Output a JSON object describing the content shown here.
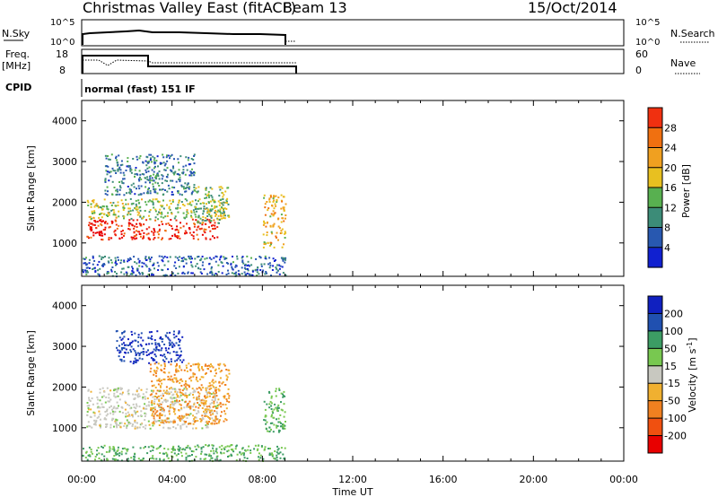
{
  "header": {
    "title": "Christmas Valley East (fitACF)",
    "beam": "Beam 13",
    "date": "15/Oct/2014"
  },
  "colors": {
    "axis": "#000000",
    "power_scale": [
      "#1020d0",
      "#2858b0",
      "#3c8c78",
      "#58b050",
      "#e8c020",
      "#f0a020",
      "#f07010",
      "#f03010",
      "#e80000"
    ],
    "velocity_scale": [
      "#e80000",
      "#f05010",
      "#f08020",
      "#f0b030",
      "#c8c8c0",
      "#78c850",
      "#3c9c64",
      "#2050b0",
      "#1020c0"
    ]
  },
  "sky_panel": {
    "left_label": "N.Sky",
    "left_ticks": [
      "10^5",
      "10^0"
    ],
    "right_ticks": [
      "10^5",
      "10^0"
    ],
    "right_label": "N.Search"
  },
  "freq_panel": {
    "left_label_1": "Freq.",
    "left_label_2": "[MHz]",
    "left_ticks": [
      "18",
      "8"
    ],
    "right_ticks": [
      "60",
      "0"
    ],
    "right_label": "Nave"
  },
  "cpid_panel": {
    "label": "CPID",
    "text": "normal (fast) 151 IF"
  },
  "chart_data": [
    {
      "type": "heatmap",
      "parameter": "Power",
      "ylabel": "Slant Range [km]",
      "xlabel": "Time UT",
      "x_ticks": [
        "00:00",
        "04:00",
        "08:00",
        "12:00",
        "16:00",
        "20:00",
        "00:00"
      ],
      "xlim_hours": [
        0,
        24
      ],
      "y_ticks": [
        1000,
        2000,
        3000,
        4000
      ],
      "ylim_km": [
        180,
        4500
      ],
      "colorbar": {
        "label": "Power [dB]",
        "ticks": [
          4,
          8,
          12,
          16,
          20,
          24,
          28
        ],
        "range": [
          0,
          32
        ]
      },
      "data_coverage_hours": [
        0,
        9.5
      ],
      "regions": [
        {
          "name": "main-echo-band",
          "t_start": 0.2,
          "t_end": 6.0,
          "range_km": [
            1100,
            1600
          ],
          "power_db": 28
        },
        {
          "name": "upper-band",
          "t_start": 0.2,
          "t_end": 6.5,
          "range_km": [
            1600,
            2100
          ],
          "power_db": 14
        },
        {
          "name": "high-range-patch",
          "t_start": 1.0,
          "t_end": 5.0,
          "range_km": [
            2200,
            3200
          ],
          "power_db": 8
        },
        {
          "name": "rising-arc",
          "t_start": 5.0,
          "t_end": 6.5,
          "range_km": [
            1500,
            2400
          ],
          "power_db": 12
        },
        {
          "name": "late-patch",
          "t_start": 8.0,
          "t_end": 9.0,
          "range_km": [
            900,
            2200
          ],
          "power_db": 18
        },
        {
          "name": "near-range-ground",
          "t_start": 0.0,
          "t_end": 9.0,
          "range_km": [
            200,
            700
          ],
          "power_db": 6
        }
      ]
    },
    {
      "type": "heatmap",
      "parameter": "Velocity",
      "ylabel": "Slant Range [km]",
      "xlabel": "Time UT",
      "x_ticks": [
        "00:00",
        "04:00",
        "08:00",
        "12:00",
        "16:00",
        "20:00",
        "00:00"
      ],
      "xlim_hours": [
        0,
        24
      ],
      "y_ticks": [
        1000,
        2000,
        3000,
        4000
      ],
      "ylim_km": [
        180,
        4500
      ],
      "colorbar": {
        "label": "Velocity [m s^-1]",
        "tick_labels": [
          "200",
          "100",
          "50",
          "15",
          "-15",
          "-50",
          "-100",
          "-200"
        ]
      },
      "data_coverage_hours": [
        0,
        9.5
      ],
      "regions": [
        {
          "name": "main-echo-band",
          "t_start": 0.2,
          "t_end": 6.0,
          "range_km": [
            1000,
            2000
          ],
          "velocity_ms": 0
        },
        {
          "name": "high-range-patch",
          "t_start": 1.5,
          "t_end": 4.5,
          "range_km": [
            2600,
            3400
          ],
          "velocity_ms": 200
        },
        {
          "name": "orange-streaks",
          "t_start": 3.0,
          "t_end": 6.5,
          "range_km": [
            1100,
            2600
          ],
          "velocity_ms": -50
        },
        {
          "name": "late-patch",
          "t_start": 8.0,
          "t_end": 9.0,
          "range_km": [
            900,
            2000
          ],
          "velocity_ms": 50
        },
        {
          "name": "near-range",
          "t_start": 0.0,
          "t_end": 9.0,
          "range_km": [
            200,
            600
          ],
          "velocity_ms": 50
        }
      ]
    }
  ]
}
